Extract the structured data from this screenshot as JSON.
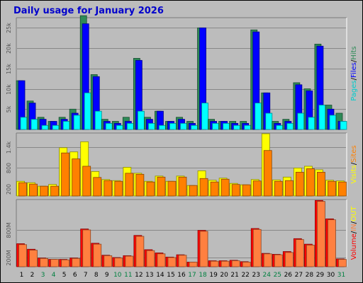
{
  "chart_data": {
    "type": "bar",
    "title": "Daily usage for January 2026",
    "days": [
      "1",
      "2",
      "3",
      "4",
      "5",
      "6",
      "7",
      "8",
      "9",
      "10",
      "11",
      "12",
      "13",
      "14",
      "15",
      "16",
      "17",
      "18",
      "19",
      "20",
      "21",
      "22",
      "23",
      "24",
      "25",
      "26",
      "27",
      "28",
      "29",
      "30",
      "31"
    ],
    "weekend_days": [
      "3",
      "4",
      "10",
      "11",
      "17",
      "18",
      "24",
      "25",
      "31"
    ],
    "panels": [
      {
        "name": "Pages / Files / Hits",
        "side_label": [
          "Pages",
          "/",
          "Files",
          "/",
          "Hits"
        ],
        "y_max": 27500,
        "y_ticks": [
          {
            "value": 5000,
            "label": "5k"
          },
          {
            "value": 10000,
            "label": "10k"
          },
          {
            "value": 15000,
            "label": "15k"
          },
          {
            "value": 20000,
            "label": "20k"
          },
          {
            "value": 25000,
            "label": "25k"
          }
        ],
        "series": [
          {
            "name": "Hits",
            "color": "#2e8b57",
            "values": [
              12000,
              7000,
              3000,
              2000,
              3000,
              5000,
              28000,
              13500,
              2500,
              2000,
              3000,
              17500,
              3000,
              4500,
              2000,
              3000,
              2000,
              25000,
              2500,
              2000,
              2000,
              2000,
              24500,
              9000,
              2000,
              2500,
              11500,
              10000,
              21000,
              6000,
              4000
            ]
          },
          {
            "name": "Files",
            "color": "#0000ff",
            "values": [
              12000,
              6500,
              2500,
              2000,
              2500,
              4000,
              26000,
              13000,
              2000,
              1500,
              2000,
              17000,
              2500,
              4500,
              2000,
              2500,
              1500,
              25000,
              2000,
              2000,
              1500,
              1500,
              24000,
              9000,
              1500,
              2000,
              11000,
              9500,
              20500,
              5000,
              2000
            ]
          },
          {
            "name": "Pages",
            "color": "#00ffff",
            "values": [
              3000,
              2500,
              1000,
              1000,
              2000,
              3500,
              9000,
              4500,
              1500,
              1000,
              1500,
              4500,
              1500,
              1000,
              1500,
              1500,
              1000,
              6500,
              1500,
              1500,
              1000,
              1000,
              6500,
              4000,
              1000,
              1500,
              4000,
              3000,
              6000,
              3500,
              2000
            ]
          }
        ]
      },
      {
        "name": "Visits / Sites",
        "side_label": [
          "Visits",
          "/",
          "Sites"
        ],
        "y_max": 1800,
        "y_ticks": [
          {
            "value": 200,
            "label": "200"
          },
          {
            "value": 800,
            "label": "800"
          },
          {
            "value": 1400,
            "label": "1.4k"
          }
        ],
        "series": [
          {
            "name": "Visits",
            "color": "#ffff00",
            "values": [
              420,
              380,
              280,
              330,
              1380,
              1260,
              1550,
              700,
              470,
              440,
              820,
              650,
              420,
              570,
              420,
              570,
              300,
              720,
              450,
              510,
              360,
              320,
              470,
              1780,
              460,
              540,
              800,
              850,
              750,
              450,
              430
            ]
          },
          {
            "name": "Sites",
            "color": "#ff8000",
            "values": [
              380,
              340,
              280,
              280,
              1230,
              1060,
              850,
              530,
              440,
              420,
              650,
              620,
              400,
              540,
              420,
              540,
              300,
              500,
              400,
              480,
              330,
              320,
              430,
              1300,
              420,
              440,
              680,
              780,
              680,
              420,
              400
            ]
          }
        ]
      },
      {
        "name": "Volume / IN / OUT",
        "side_label": [
          "Volume",
          "/",
          "IN",
          "/",
          "OUT"
        ],
        "y_max": 1460,
        "y_ticks": [
          {
            "value": 200,
            "label": "200M"
          },
          {
            "value": 800,
            "label": "800M"
          }
        ],
        "series": [
          {
            "name": "Volume",
            "color": "#ff0000",
            "values": [
              500,
              380,
              190,
              160,
              160,
              190,
              820,
              510,
              250,
              200,
              240,
              680,
              370,
              300,
              210,
              260,
              100,
              790,
              130,
              130,
              140,
              110,
              830,
              290,
              270,
              330,
              610,
              490,
              1440,
              1040,
              170
            ]
          },
          {
            "name": "OUT",
            "color": "#ff8040",
            "values": [
              480,
              360,
              180,
              160,
              150,
              180,
              800,
              490,
              240,
              190,
              230,
              660,
              350,
              280,
              200,
              250,
              100,
              770,
              120,
              120,
              130,
              100,
              810,
              280,
              260,
              310,
              590,
              470,
              1420,
              1020,
              160
            ]
          }
        ]
      }
    ],
    "side_label_colors": {
      "Pages": "#00cccc",
      "Files": "#0000ff",
      "Hits": "#2e8b57",
      "Visits": "#ffff00",
      "Sites": "#ff8000",
      "Volume": "#ff0000",
      "IN": "#ff8040",
      "OUT": "#ffff00",
      "/": "#000000"
    }
  }
}
